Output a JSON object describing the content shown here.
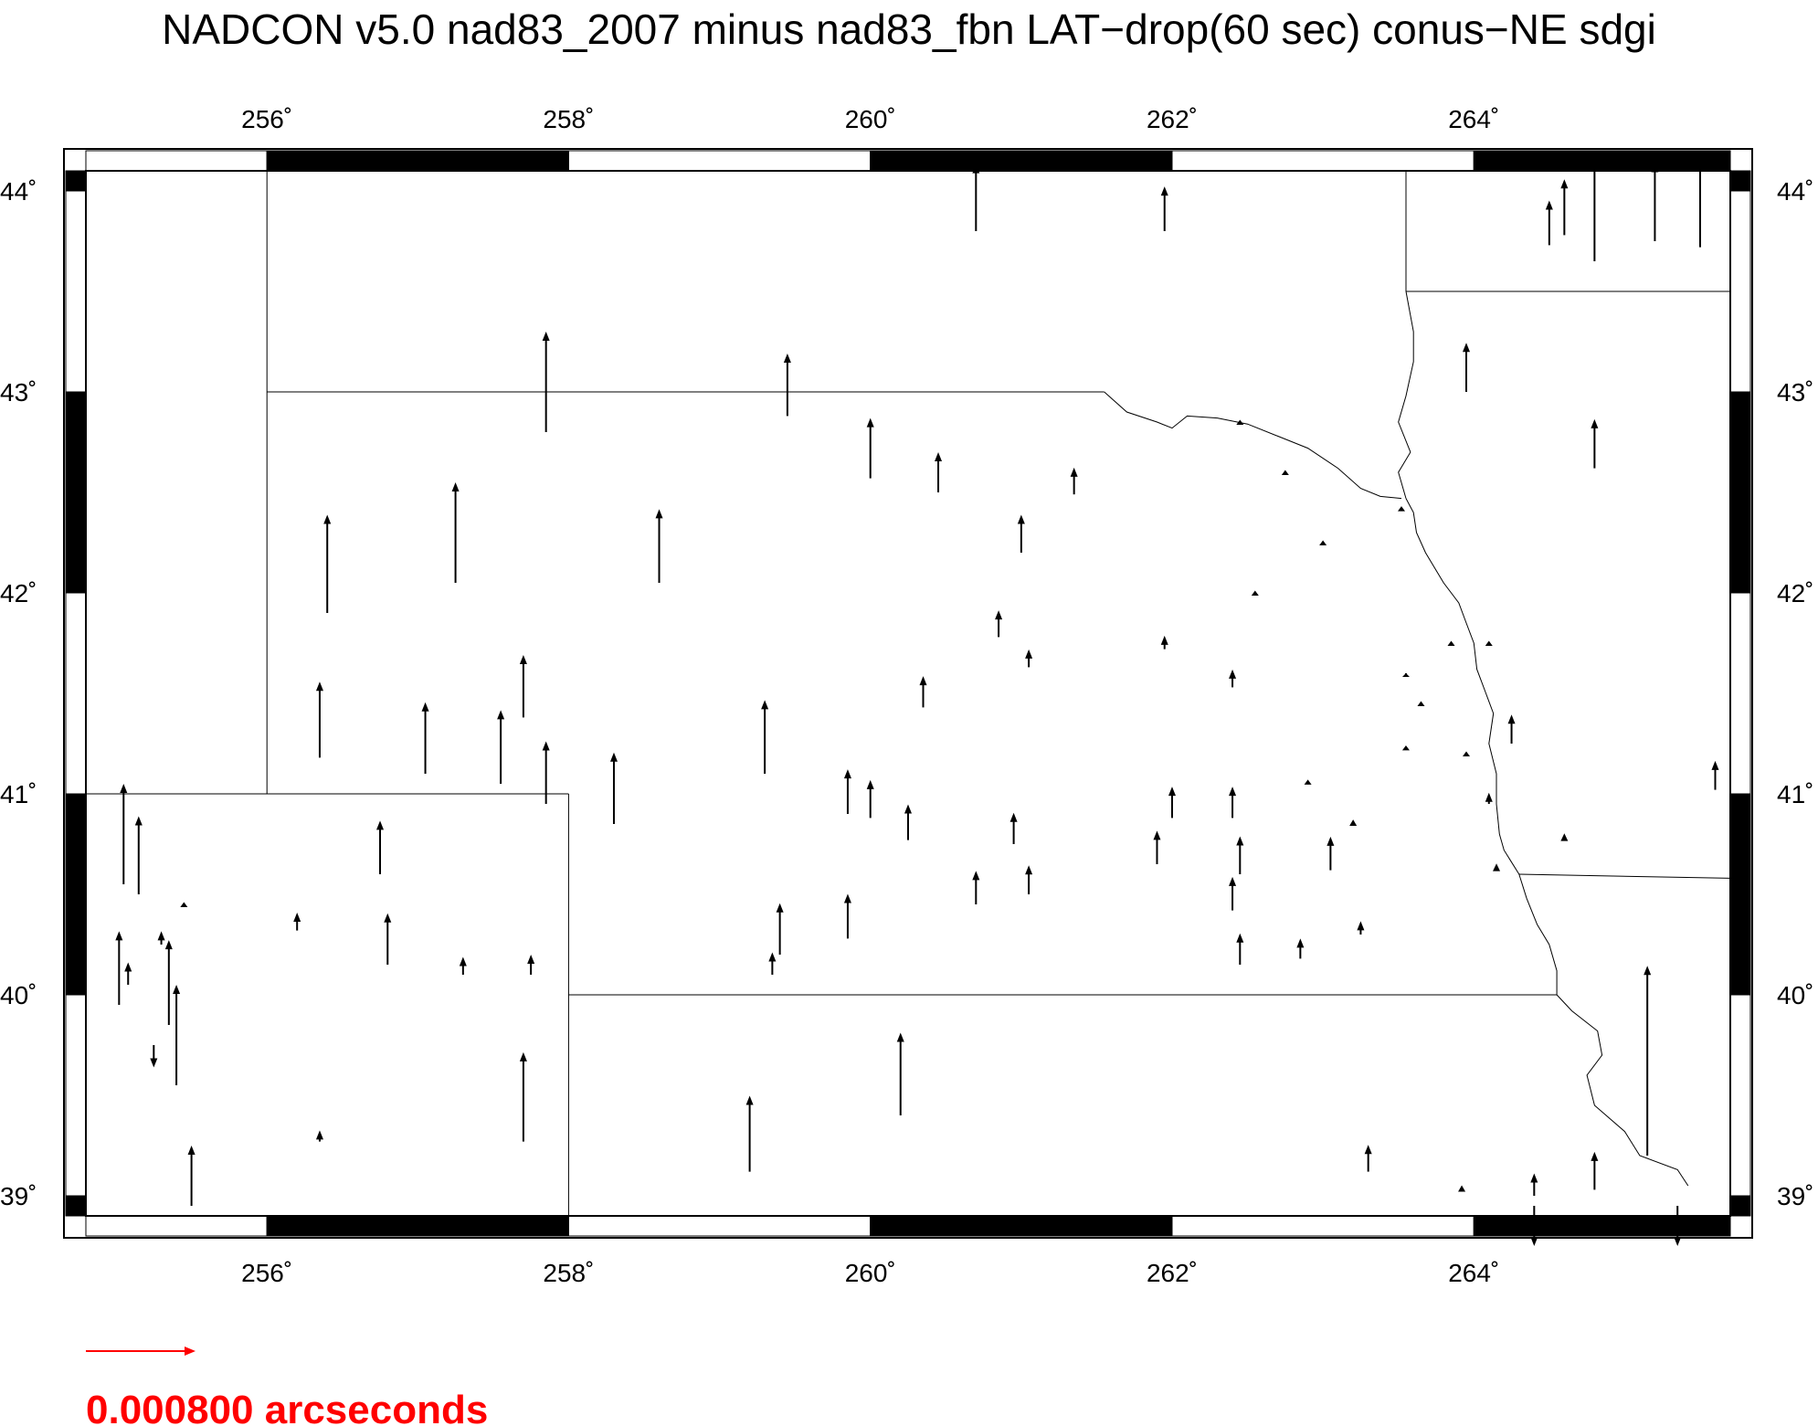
{
  "title": "NADCON v5.0 nad83_2007 minus nad83_fbn LAT−drop(60 sec) conus−NE sdgi",
  "map": {
    "lon_range": [
      254.8,
      265.7
    ],
    "lat_range": [
      38.9,
      44.1
    ],
    "lon_ticks": [
      {
        "value": 256,
        "label": "256˚"
      },
      {
        "value": 258,
        "label": "258˚"
      },
      {
        "value": 260,
        "label": "260˚"
      },
      {
        "value": 262,
        "label": "262˚"
      },
      {
        "value": 264,
        "label": "264˚"
      }
    ],
    "lat_ticks": [
      {
        "value": 39,
        "label": "39˚"
      },
      {
        "value": 40,
        "label": "40˚"
      },
      {
        "value": 41,
        "label": "41˚"
      },
      {
        "value": 42,
        "label": "42˚"
      },
      {
        "value": 43,
        "label": "43˚"
      },
      {
        "value": 44,
        "label": "44˚"
      }
    ],
    "frame_colors": {
      "dark": "#000000",
      "light": "#ffffff"
    },
    "vector_color": "#000000",
    "boundary_color": "#000000",
    "boundaries": [
      {
        "name": "wyoming-colorado-east-line",
        "points": [
          [
            256.0,
            44.1
          ],
          [
            256.0,
            41.0
          ]
        ]
      },
      {
        "name": "colorado-north-line",
        "points": [
          [
            254.8,
            41.0
          ],
          [
            258.0,
            41.0
          ]
        ]
      },
      {
        "name": "colorado-east-line",
        "points": [
          [
            258.0,
            41.0
          ],
          [
            258.0,
            38.9
          ]
        ]
      },
      {
        "name": "kansas-north-line",
        "points": [
          [
            258.0,
            40.0
          ],
          [
            264.55,
            40.0
          ]
        ]
      },
      {
        "name": "south-dakota-south-line",
        "points": [
          [
            256.0,
            43.0
          ],
          [
            261.55,
            43.0
          ]
        ]
      },
      {
        "name": "minnesota-south-line",
        "points": [
          [
            263.55,
            43.5
          ],
          [
            265.7,
            43.5
          ]
        ]
      },
      {
        "name": "minnesota-iowa-west-line",
        "points": [
          [
            263.55,
            43.5
          ],
          [
            263.55,
            44.1
          ]
        ]
      },
      {
        "name": "iowa-missouri-line",
        "points": [
          [
            264.3,
            40.6
          ],
          [
            265.7,
            40.58
          ]
        ]
      },
      {
        "name": "missouri-river-sd-ne",
        "points": [
          [
            261.55,
            43.0
          ],
          [
            261.7,
            42.9
          ],
          [
            261.9,
            42.85
          ],
          [
            262.0,
            42.82
          ],
          [
            262.1,
            42.88
          ],
          [
            262.3,
            42.87
          ],
          [
            262.5,
            42.84
          ],
          [
            262.7,
            42.78
          ],
          [
            262.9,
            42.72
          ],
          [
            263.1,
            42.62
          ],
          [
            263.25,
            42.52
          ],
          [
            263.38,
            42.48
          ],
          [
            263.52,
            42.47
          ]
        ]
      },
      {
        "name": "big-sioux-river",
        "points": [
          [
            263.55,
            43.5
          ],
          [
            263.6,
            43.3
          ],
          [
            263.6,
            43.15
          ],
          [
            263.55,
            42.98
          ],
          [
            263.5,
            42.85
          ],
          [
            263.58,
            42.7
          ],
          [
            263.5,
            42.6
          ],
          [
            263.55,
            42.47
          ]
        ]
      },
      {
        "name": "missouri-river-ne-ia",
        "points": [
          [
            263.55,
            42.47
          ],
          [
            263.6,
            42.4
          ],
          [
            263.62,
            42.3
          ],
          [
            263.68,
            42.2
          ],
          [
            263.8,
            42.05
          ],
          [
            263.9,
            41.95
          ],
          [
            263.95,
            41.85
          ],
          [
            264.0,
            41.75
          ],
          [
            264.02,
            41.62
          ],
          [
            264.08,
            41.5
          ],
          [
            264.13,
            41.4
          ],
          [
            264.1,
            41.25
          ],
          [
            264.15,
            41.1
          ],
          [
            264.15,
            40.95
          ],
          [
            264.17,
            40.8
          ],
          [
            264.2,
            40.72
          ],
          [
            264.3,
            40.6
          ]
        ]
      },
      {
        "name": "missouri-river-ne-ks-mo",
        "points": [
          [
            264.3,
            40.6
          ],
          [
            264.35,
            40.48
          ],
          [
            264.42,
            40.35
          ],
          [
            264.5,
            40.25
          ],
          [
            264.55,
            40.12
          ],
          [
            264.55,
            40.0
          ],
          [
            264.65,
            39.92
          ],
          [
            264.82,
            39.82
          ],
          [
            264.85,
            39.7
          ],
          [
            264.75,
            39.6
          ],
          [
            264.8,
            39.45
          ],
          [
            265.0,
            39.32
          ],
          [
            265.1,
            39.2
          ],
          [
            265.35,
            39.13
          ],
          [
            265.42,
            39.05
          ]
        ]
      }
    ],
    "vectors": [
      [
        255.05,
        40.55,
        0.45
      ],
      [
        255.15,
        40.5,
        0.35
      ],
      [
        255.02,
        39.95,
        0.33
      ],
      [
        255.08,
        40.05,
        0.1
      ],
      [
        255.3,
        40.25,
        0.06
      ],
      [
        255.35,
        39.85,
        0.38
      ],
      [
        255.25,
        39.75,
        -0.1
      ],
      [
        255.4,
        39.55,
        0.45
      ],
      [
        255.5,
        38.95,
        0.27
      ],
      [
        255.45,
        40.45,
        0.01
      ],
      [
        256.2,
        40.32,
        0.08
      ],
      [
        256.35,
        39.27,
        0.05
      ],
      [
        256.75,
        40.6,
        0.24
      ],
      [
        256.8,
        40.15,
        0.23
      ],
      [
        257.3,
        40.1,
        0.08
      ],
      [
        257.75,
        40.1,
        0.09
      ],
      [
        257.7,
        39.27,
        0.4
      ],
      [
        256.35,
        41.18,
        0.34
      ],
      [
        257.05,
        41.1,
        0.32
      ],
      [
        257.55,
        41.05,
        0.33
      ],
      [
        257.7,
        41.38,
        0.28
      ],
      [
        257.85,
        40.95,
        0.28
      ],
      [
        258.3,
        40.85,
        0.32
      ],
      [
        256.4,
        41.9,
        0.44
      ],
      [
        257.25,
        42.05,
        0.45
      ],
      [
        257.85,
        42.8,
        0.45
      ],
      [
        258.6,
        42.05,
        0.33
      ],
      [
        259.45,
        42.88,
        0.28
      ],
      [
        259.3,
        41.1,
        0.33
      ],
      [
        260.0,
        42.57,
        0.27
      ],
      [
        260.45,
        42.5,
        0.18
      ],
      [
        261.35,
        42.49,
        0.12
      ],
      [
        261.0,
        42.2,
        0.17
      ],
      [
        260.85,
        41.78,
        0.12
      ],
      [
        261.05,
        41.63,
        0.08
      ],
      [
        260.35,
        41.43,
        0.14
      ],
      [
        259.85,
        40.9,
        0.2
      ],
      [
        260.0,
        40.88,
        0.17
      ],
      [
        260.25,
        40.77,
        0.16
      ],
      [
        260.95,
        40.75,
        0.14
      ],
      [
        261.05,
        40.5,
        0.13
      ],
      [
        260.7,
        40.45,
        0.15
      ],
      [
        259.4,
        40.2,
        0.23
      ],
      [
        259.35,
        40.1,
        0.1
      ],
      [
        259.85,
        40.28,
        0.2
      ],
      [
        259.2,
        39.12,
        0.34
      ],
      [
        260.2,
        39.4,
        0.37
      ],
      [
        261.95,
        43.8,
        0.2
      ],
      [
        260.7,
        43.8,
        0.3
      ],
      [
        261.95,
        41.72,
        0.06
      ],
      [
        262.0,
        40.88,
        0.14
      ],
      [
        261.9,
        40.65,
        0.15
      ],
      [
        262.4,
        40.88,
        0.14
      ],
      [
        262.45,
        40.6,
        0.17
      ],
      [
        262.4,
        40.42,
        0.15
      ],
      [
        262.45,
        40.15,
        0.14
      ],
      [
        262.4,
        41.53,
        0.08
      ],
      [
        262.85,
        40.18,
        0.09
      ],
      [
        263.05,
        40.62,
        0.15
      ],
      [
        263.2,
        40.85,
        0.02
      ],
      [
        263.25,
        40.3,
        0.06
      ],
      [
        262.9,
        41.06,
        0.01
      ],
      [
        262.55,
        42.0,
        0.01
      ],
      [
        262.75,
        42.6,
        0.01
      ],
      [
        262.45,
        42.85,
        0.01
      ],
      [
        263.0,
        42.25,
        0.01
      ],
      [
        263.55,
        41.6,
        0.0
      ],
      [
        263.65,
        41.45,
        0.01
      ],
      [
        263.55,
        41.23,
        0.01
      ],
      [
        263.52,
        42.42,
        0.01
      ],
      [
        263.85,
        41.75,
        0.01
      ],
      [
        263.95,
        41.2,
        0.01
      ],
      [
        264.1,
        41.75,
        0.01
      ],
      [
        264.1,
        40.95,
        0.05
      ],
      [
        264.15,
        40.62,
        0.03
      ],
      [
        264.25,
        41.25,
        0.13
      ],
      [
        264.6,
        40.77,
        0.03
      ],
      [
        264.8,
        42.62,
        0.22
      ],
      [
        263.95,
        43.0,
        0.22
      ],
      [
        265.6,
        41.02,
        0.13
      ],
      [
        265.15,
        39.2,
        0.85
      ],
      [
        265.35,
        38.95,
        -0.18
      ],
      [
        264.8,
        39.03,
        0.17
      ],
      [
        264.4,
        38.95,
        -0.18
      ],
      [
        264.4,
        39.0,
        0.1
      ],
      [
        263.3,
        39.12,
        0.12
      ],
      [
        263.92,
        39.03,
        0.02
      ],
      [
        264.5,
        43.73,
        0.2
      ],
      [
        264.6,
        43.78,
        0.25
      ],
      [
        264.8,
        43.65,
        0.45
      ],
      [
        265.5,
        43.72,
        0.4
      ],
      [
        265.2,
        43.75,
        0.35
      ]
    ]
  },
  "legend": {
    "vector_length": 0.45,
    "label": "0.000800 arcseconds",
    "color": "#ff0000"
  }
}
